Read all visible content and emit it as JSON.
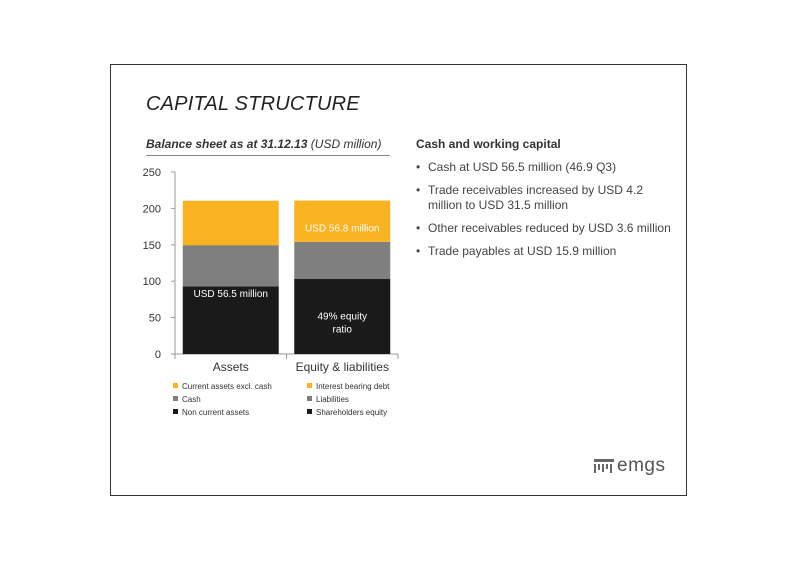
{
  "title": "CAPITAL STRUCTURE",
  "subtitle": {
    "bold": "Balance sheet as at 31.12.13",
    "rest": "(USD million)"
  },
  "right": {
    "heading": "Cash and working capital",
    "bullets": [
      "Cash at USD 56.5 million (46.9 Q3)",
      "Trade receivables increased by USD 4.2 million to USD 31.5 million",
      "Other receivables reduced by USD 3.6 million",
      "Trade payables at USD 15.9 million"
    ]
  },
  "logo": {
    "text": "emgs"
  },
  "colors": {
    "orange": "#F9B220",
    "gray": "#7F7F7F",
    "black": "#1A1A1A"
  },
  "chart_data": {
    "type": "bar",
    "stacked": true,
    "categories": [
      "Assets",
      "Equity & liabilities"
    ],
    "ylim": [
      0,
      250
    ],
    "yticks": [
      0,
      50,
      100,
      150,
      200,
      250
    ],
    "series": [
      {
        "name": "Non current assets",
        "color": "#1A1A1A",
        "values": [
          93,
          null
        ]
      },
      {
        "name": "Cash",
        "color": "#7F7F7F",
        "values": [
          56.5,
          null
        ]
      },
      {
        "name": "Current assets excl. cash",
        "color": "#F9B220",
        "values": [
          61,
          null
        ]
      },
      {
        "name": "Shareholders equity",
        "color": "#1A1A1A",
        "values": [
          null,
          103
        ]
      },
      {
        "name": "Liabilities",
        "color": "#7F7F7F",
        "values": [
          null,
          51
        ]
      },
      {
        "name": "Interest bearing debt",
        "color": "#F9B220",
        "values": [
          null,
          56.8
        ]
      }
    ],
    "legend": {
      "left": [
        "Current assets excl. cash",
        "Cash",
        "Non current assets"
      ],
      "right": [
        "Interest bearing debt",
        "Liabilities",
        "Shareholders equity"
      ]
    },
    "annotations": [
      {
        "category": 0,
        "y": 84,
        "lines": [
          "USD 56.5 million"
        ]
      },
      {
        "category": 1,
        "y": 174,
        "lines": [
          "USD 56.8 million"
        ]
      },
      {
        "category": 1,
        "y": 44,
        "lines": [
          "49% equity",
          "ratio"
        ]
      }
    ]
  }
}
